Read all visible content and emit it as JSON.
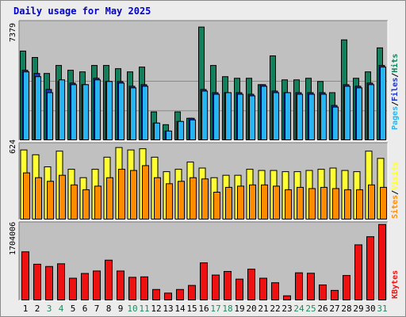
{
  "title": "Daily usage for May 2025",
  "colors": {
    "hits": "#137f5c",
    "files": "#28b4f0",
    "pages": "#1e36c8",
    "visits": "#ffff33",
    "sites": "#ff8c00",
    "kbytes": "#ee1111",
    "weekend_day": "#1f8a60",
    "weekday": "#000000",
    "panel_bg": "#c0c0c0",
    "frame_bg": "#ececec"
  },
  "panels": {
    "top": {
      "max_label": "7379",
      "labels": [
        "Pages",
        "Files",
        "Hits"
      ]
    },
    "middle": {
      "max_label": "624",
      "labels": [
        "Sites",
        "Visits"
      ]
    },
    "bottom": {
      "max_label": "1704006",
      "labels": [
        "KBytes"
      ]
    }
  },
  "label_separator": "/",
  "chart_data": {
    "type": "bar",
    "categories": [
      "1",
      "2",
      "3",
      "4",
      "5",
      "6",
      "7",
      "8",
      "9",
      "10",
      "11",
      "12",
      "13",
      "14",
      "15",
      "16",
      "17",
      "18",
      "19",
      "20",
      "21",
      "22",
      "23",
      "24",
      "25",
      "26",
      "27",
      "28",
      "29",
      "30",
      "31"
    ],
    "weekend_days": [
      "3",
      "4",
      "10",
      "11",
      "17",
      "18",
      "24",
      "25",
      "31"
    ],
    "ylim": [
      0,
      7379
    ],
    "series": [
      {
        "name": "Hits",
        "values": [
          5600,
          5200,
          4200,
          4700,
          4400,
          4300,
          4700,
          4700,
          4500,
          4300,
          4600,
          1800,
          1000,
          1800,
          1400,
          7100,
          4700,
          4000,
          3900,
          3900,
          3500,
          5300,
          3800,
          3800,
          3900,
          3700,
          3000,
          6300,
          3900,
          4300,
          5800
        ]
      },
      {
        "name": "Files",
        "values": [
          4300,
          4000,
          3000,
          3800,
          3500,
          3500,
          3800,
          3700,
          3600,
          3300,
          3400,
          1100,
          600,
          1200,
          1300,
          3100,
          2900,
          3000,
          2900,
          2800,
          3400,
          3000,
          3000,
          2900,
          2900,
          2900,
          2100,
          3400,
          3300,
          3500,
          4600
        ]
      },
      {
        "name": "Pages",
        "values": [
          4400,
          4200,
          3200,
          3700,
          3600,
          3500,
          3900,
          3700,
          3700,
          3400,
          3500,
          1100,
          600,
          1200,
          1400,
          3200,
          3000,
          3000,
          3000,
          2900,
          3500,
          3100,
          3000,
          3000,
          3000,
          3000,
          2200,
          3500,
          3400,
          3600,
          4700
        ]
      }
    ],
    "middle": {
      "ylim": [
        0,
        624
      ],
      "series": [
        {
          "name": "Visits",
          "values": [
            580,
            540,
            440,
            570,
            420,
            350,
            420,
            520,
            600,
            580,
            590,
            520,
            400,
            420,
            480,
            430,
            350,
            370,
            370,
            420,
            410,
            410,
            400,
            400,
            410,
            420,
            430,
            410,
            400,
            570,
            510
          ]
        },
        {
          "name": "Sites",
          "values": [
            390,
            350,
            320,
            370,
            290,
            250,
            280,
            350,
            420,
            410,
            450,
            350,
            300,
            320,
            350,
            340,
            230,
            270,
            280,
            290,
            290,
            280,
            250,
            270,
            260,
            270,
            260,
            250,
            250,
            290,
            270
          ]
        }
      ]
    },
    "bottom": {
      "ylim": [
        0,
        1704006
      ],
      "series": [
        {
          "name": "KBytes",
          "values": [
            1085000,
            810000,
            760000,
            820000,
            500000,
            605000,
            660000,
            900000,
            660000,
            520000,
            530000,
            250000,
            170000,
            250000,
            340000,
            840000,
            570000,
            650000,
            480000,
            700000,
            500000,
            400000,
            110000,
            620000,
            610000,
            350000,
            230000,
            560000,
            1240000,
            1420000,
            1690000
          ]
        }
      ]
    }
  }
}
